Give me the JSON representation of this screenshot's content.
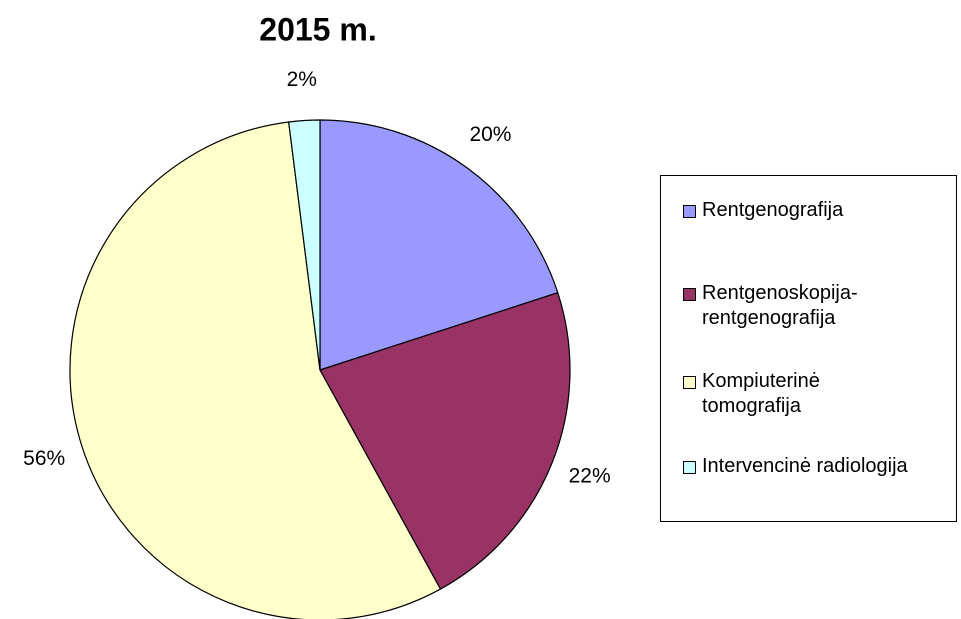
{
  "chart_data": {
    "type": "pie",
    "title": "2015 m.",
    "series": [
      {
        "name": "Rentgenografija",
        "color": "#9999ff",
        "values": [
          20
        ]
      },
      {
        "name": "Rentgenoskopija-\nrentgenografija",
        "color": "#993366",
        "values": [
          22
        ]
      },
      {
        "name": "Kompiuterinė\ntomografija",
        "color": "#ffffcc",
        "values": [
          56
        ]
      },
      {
        "name": "Intervencinė radiologija",
        "color": "#ccffff",
        "values": [
          2
        ]
      }
    ],
    "value_labels": [
      "20%",
      "22%",
      "56%",
      "2%"
    ],
    "legend": "right"
  }
}
